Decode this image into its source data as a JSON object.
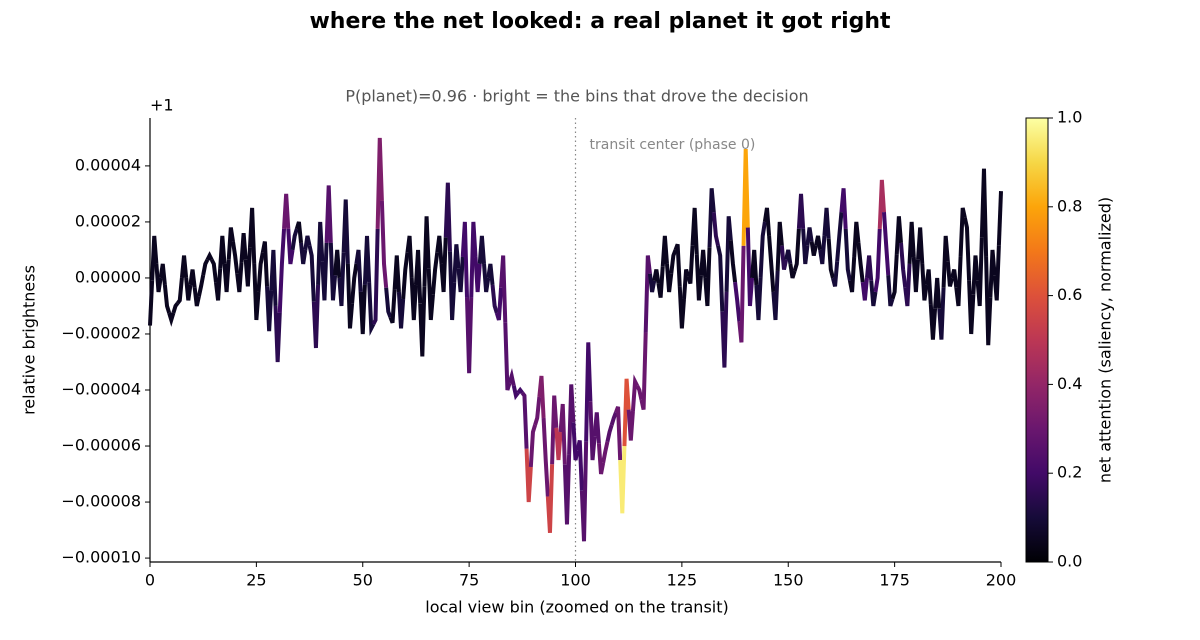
{
  "chart_data": {
    "type": "saliency-line",
    "title": "where the net looked: a real planet it got right",
    "subtitle": "P(planet)=0.96  ·  bright = the bins that drove the decision",
    "x_label": "local view bin  (zoomed on the transit)",
    "y_label": "relative brightness",
    "y_offset_label": "+1",
    "annotation": {
      "x": 100,
      "text": "transit center (phase 0)"
    },
    "colorbar": {
      "label": "net attention  (saliency, normalized)",
      "colormap": "inferno",
      "lim": [
        0,
        1
      ],
      "ticks": [
        {
          "value": 0,
          "label": "0.0"
        },
        0.2,
        0.4,
        0.6,
        0.8,
        {
          "value": 1,
          "label": "1.0"
        }
      ]
    },
    "xlim": [
      0,
      200
    ],
    "xticks": [
      0,
      25,
      50,
      75,
      100,
      125,
      150,
      175,
      200
    ],
    "ylim": [
      -0.0001014,
      5.71e-05
    ],
    "yticks": [
      {
        "value": -0.0001,
        "label": "−0.00010"
      },
      {
        "value": -8e-05,
        "label": "−0.00008"
      },
      {
        "value": -6e-05,
        "label": "−0.00006"
      },
      {
        "value": -4e-05,
        "label": "−0.00004"
      },
      {
        "value": -2e-05,
        "label": "−0.00002"
      },
      {
        "value": 0,
        "label": "0.00000"
      },
      {
        "value": 2e-05,
        "label": "0.00002"
      },
      {
        "value": 4e-05,
        "label": "0.00004"
      }
    ],
    "x": [
      0,
      1,
      2,
      3,
      4,
      5,
      6,
      7,
      8,
      9,
      10,
      11,
      12,
      13,
      14,
      15,
      16,
      17,
      18,
      19,
      20,
      21,
      22,
      23,
      24,
      25,
      26,
      27,
      28,
      29,
      30,
      31,
      32,
      33,
      34,
      35,
      36,
      37,
      38,
      39,
      40,
      41,
      42,
      43,
      44,
      45,
      46,
      47,
      48,
      49,
      50,
      51,
      52,
      53,
      54,
      55,
      56,
      57,
      58,
      59,
      60,
      61,
      62,
      63,
      64,
      65,
      66,
      67,
      68,
      69,
      70,
      71,
      72,
      73,
      74,
      75,
      76,
      77,
      78,
      79,
      80,
      81,
      82,
      83,
      84,
      85,
      86,
      87,
      88,
      89,
      90,
      91,
      92,
      93,
      94,
      95,
      96,
      97,
      98,
      99,
      100,
      101,
      102,
      103,
      104,
      105,
      106,
      107,
      108,
      109,
      110,
      111,
      112,
      113,
      114,
      115,
      116,
      117,
      118,
      119,
      120,
      121,
      122,
      123,
      124,
      125,
      126,
      127,
      128,
      129,
      130,
      131,
      132,
      133,
      134,
      135,
      136,
      137,
      138,
      139,
      140,
      141,
      142,
      143,
      144,
      145,
      146,
      147,
      148,
      149,
      150,
      151,
      152,
      153,
      154,
      155,
      156,
      157,
      158,
      159,
      160,
      161,
      162,
      163,
      164,
      165,
      166,
      167,
      168,
      169,
      170,
      171,
      172,
      173,
      174,
      175,
      176,
      177,
      178,
      179,
      180,
      181,
      182,
      183,
      184,
      185,
      186,
      187,
      188,
      189,
      190,
      191,
      192,
      193,
      194,
      195,
      196,
      197,
      198,
      199,
      200
    ],
    "values": [
      -1.7e-05,
      1.5e-05,
      -5e-06,
      5e-06,
      -1e-05,
      -1.5e-05,
      -1e-05,
      -8e-06,
      8e-06,
      -8e-06,
      3e-06,
      -1e-05,
      -3e-06,
      5e-06,
      8e-06,
      5e-06,
      -8e-06,
      1.5e-05,
      -5e-06,
      1.8e-05,
      8e-06,
      -5e-06,
      1.6e-05,
      -3e-06,
      2.5e-05,
      -1.5e-05,
      5e-06,
      1.3e-05,
      -1.9e-05,
      1e-05,
      -3e-05,
      5e-06,
      3e-05,
      5e-06,
      1.5e-05,
      2e-05,
      5e-06,
      1.5e-05,
      8e-06,
      -2.5e-05,
      2e-05,
      -8e-06,
      3.3e-05,
      -8e-06,
      1e-05,
      -1e-05,
      2.8e-05,
      -1.8e-05,
      0,
      1e-05,
      -2e-05,
      1.5e-05,
      -1.8e-05,
      -1.5e-05,
      5e-05,
      5e-06,
      -1.2e-05,
      -1.6e-05,
      8e-06,
      -1.8e-05,
      3e-06,
      1.5e-05,
      -1.5e-05,
      1e-05,
      -2.8e-05,
      2.2e-05,
      -1.5e-05,
      3e-06,
      1.5e-05,
      -5e-06,
      3.4e-05,
      -1.5e-05,
      1.2e-05,
      -5e-06,
      2e-05,
      -3.4e-05,
      2e-05,
      -5e-06,
      1.5e-05,
      -5e-06,
      5e-06,
      -1e-05,
      -1.5e-05,
      8e-06,
      -4e-05,
      -3.5e-05,
      -4.2e-05,
      -4e-05,
      -4.2e-05,
      -8e-05,
      -5.5e-05,
      -5e-05,
      -3.5e-05,
      -6.5e-05,
      -9.1e-05,
      -4.2e-05,
      -6.5e-05,
      -4.5e-05,
      -8.8e-05,
      -3.8e-05,
      -6.5e-05,
      -5.8e-05,
      -9.4e-05,
      -2.3e-05,
      -6.5e-05,
      -4.8e-05,
      -7e-05,
      -6.2e-05,
      -5.5e-05,
      -5e-05,
      -4.6e-05,
      -8.4e-05,
      -3.6e-05,
      -5.8e-05,
      -3.7e-05,
      -4e-05,
      -4.7e-05,
      8e-06,
      -5e-06,
      3e-06,
      -7e-06,
      1.5e-05,
      -5e-06,
      8e-06,
      1.2e-05,
      -1.8e-05,
      3e-06,
      -2e-06,
      2.5e-05,
      -8e-06,
      1e-05,
      -1e-05,
      3.2e-05,
      1.5e-05,
      8e-06,
      -3.2e-05,
      2.2e-05,
      5e-06,
      -8e-06,
      -2.3e-05,
      4.6e-05,
      -1e-05,
      1e-05,
      -1.5e-05,
      1.5e-05,
      2.5e-05,
      5e-06,
      -1.5e-05,
      2e-05,
      3e-06,
      1e-05,
      0,
      5e-06,
      3e-05,
      5e-06,
      1.8e-05,
      8e-06,
      1.5e-05,
      5e-06,
      2.5e-05,
      3e-06,
      -3e-06,
      1.5e-05,
      3.2e-05,
      3e-06,
      -5e-06,
      2e-05,
      5e-06,
      -8e-06,
      8e-06,
      -1e-05,
      0,
      3.5e-05,
      1.2e-05,
      -1e-05,
      -5e-06,
      2.2e-05,
      3e-06,
      -1e-05,
      2e-05,
      -5e-06,
      1.8e-05,
      -8e-06,
      3e-06,
      -2.2e-05,
      0,
      -2.2e-05,
      1.5e-05,
      -3e-06,
      3e-06,
      -1e-05,
      2.5e-05,
      1.8e-05,
      -2e-05,
      8e-06,
      -1e-05,
      3.9e-05,
      -2.4e-05,
      1e-05,
      -8e-06,
      3.1e-05
    ],
    "saliency": [
      0.05,
      0.05,
      0.05,
      0.05,
      0.05,
      0.05,
      0.05,
      0.05,
      0.05,
      0.05,
      0.05,
      0.05,
      0.05,
      0.05,
      0.05,
      0.05,
      0.05,
      0.05,
      0.05,
      0.05,
      0.05,
      0.05,
      0.05,
      0.05,
      0.05,
      0.05,
      0.05,
      0.05,
      0.1,
      0.1,
      0.15,
      0.2,
      0.3,
      0.2,
      0.1,
      0.05,
      0.1,
      0.1,
      0.1,
      0.15,
      0.1,
      0.1,
      0.25,
      0.1,
      0.05,
      0.1,
      0.1,
      0.05,
      0.05,
      0.1,
      0.05,
      0.1,
      0.1,
      0.15,
      0.35,
      0.3,
      0.1,
      0.05,
      0.05,
      0.1,
      0.05,
      0.05,
      0.05,
      0.05,
      0.05,
      0.05,
      0.05,
      0.05,
      0.05,
      0.05,
      0.15,
      0.1,
      0.1,
      0.1,
      0.2,
      0.25,
      0.2,
      0.2,
      0.1,
      0.1,
      0.1,
      0.15,
      0.2,
      0.25,
      0.25,
      0.25,
      0.2,
      0.2,
      0.25,
      0.55,
      0.3,
      0.3,
      0.35,
      0.3,
      0.55,
      0.3,
      0.5,
      0.3,
      0.25,
      0.25,
      0.2,
      0.2,
      0.25,
      0.2,
      0.25,
      0.25,
      0.3,
      0.3,
      0.25,
      0.25,
      0.3,
      0.95,
      0.6,
      0.3,
      0.3,
      0.3,
      0.3,
      0.25,
      0.1,
      0.05,
      0.05,
      0.05,
      0.05,
      0.05,
      0.05,
      0.05,
      0.05,
      0.05,
      0.05,
      0.05,
      0.05,
      0.05,
      0.1,
      0.15,
      0.1,
      0.15,
      0.1,
      0.05,
      0.2,
      0.3,
      0.8,
      0.2,
      0.05,
      0.1,
      0.1,
      0.05,
      0.05,
      0.1,
      0.05,
      0.15,
      0.1,
      0.05,
      0.05,
      0.15,
      0.1,
      0.1,
      0.05,
      0.05,
      0.1,
      0.1,
      0.05,
      0.1,
      0.1,
      0.2,
      0.1,
      0.05,
      0.05,
      0.05,
      0.2,
      0.15,
      0.1,
      0.2,
      0.45,
      0.2,
      0.1,
      0.05,
      0.05,
      0.15,
      0.15,
      0.05,
      0.05,
      0.05,
      0.05,
      0.05,
      0.05,
      0.05,
      0.1,
      0.05,
      0.05,
      0.05,
      0.05,
      0.05,
      0.05,
      0.05,
      0.05,
      0.05,
      0.05,
      0.05,
      0.05,
      0.05,
      0.05
    ]
  }
}
